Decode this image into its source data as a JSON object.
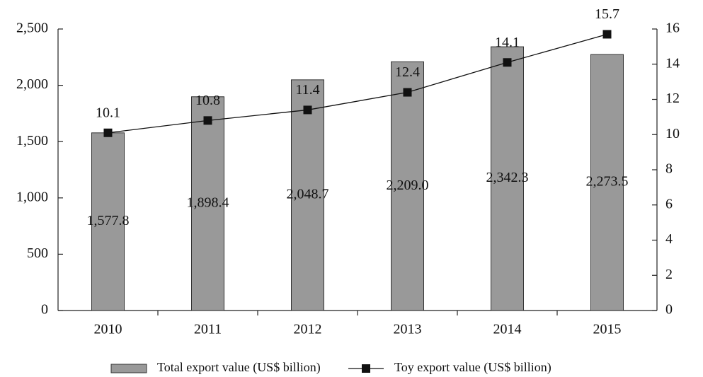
{
  "chart_data": {
    "type": "bar",
    "categories": [
      "2010",
      "2011",
      "2012",
      "2013",
      "2014",
      "2015"
    ],
    "series": [
      {
        "name": "Total export value (US$ billion)",
        "type": "bar",
        "color": "#999999",
        "axis": "y",
        "values": [
          1577.8,
          1898.4,
          2048.7,
          2209.0,
          2342.3,
          2273.5
        ],
        "value_labels": [
          "1,577.8",
          "1,898.4",
          "2,048.7",
          "2,209.0",
          "2,342.3",
          "2,273.5"
        ]
      },
      {
        "name": "Toy export value (US$ billion)",
        "type": "line",
        "color": "#111111",
        "axis": "y2",
        "values": [
          10.1,
          10.8,
          11.4,
          12.4,
          14.1,
          15.7
        ]
      }
    ],
    "ylim": [
      0,
      2500
    ],
    "yticks": [
      0,
      500,
      {
        "value": 1000,
        "label": "1,000"
      },
      {
        "value": 1500,
        "label": "1,500"
      },
      {
        "value": 2000,
        "label": "2,000"
      },
      {
        "value": 2500,
        "label": "2,500"
      }
    ],
    "y2lim": [
      0,
      16
    ],
    "y2ticks": [
      0,
      2,
      4,
      6,
      8,
      10,
      12,
      14,
      16
    ],
    "legend": "bottom"
  }
}
